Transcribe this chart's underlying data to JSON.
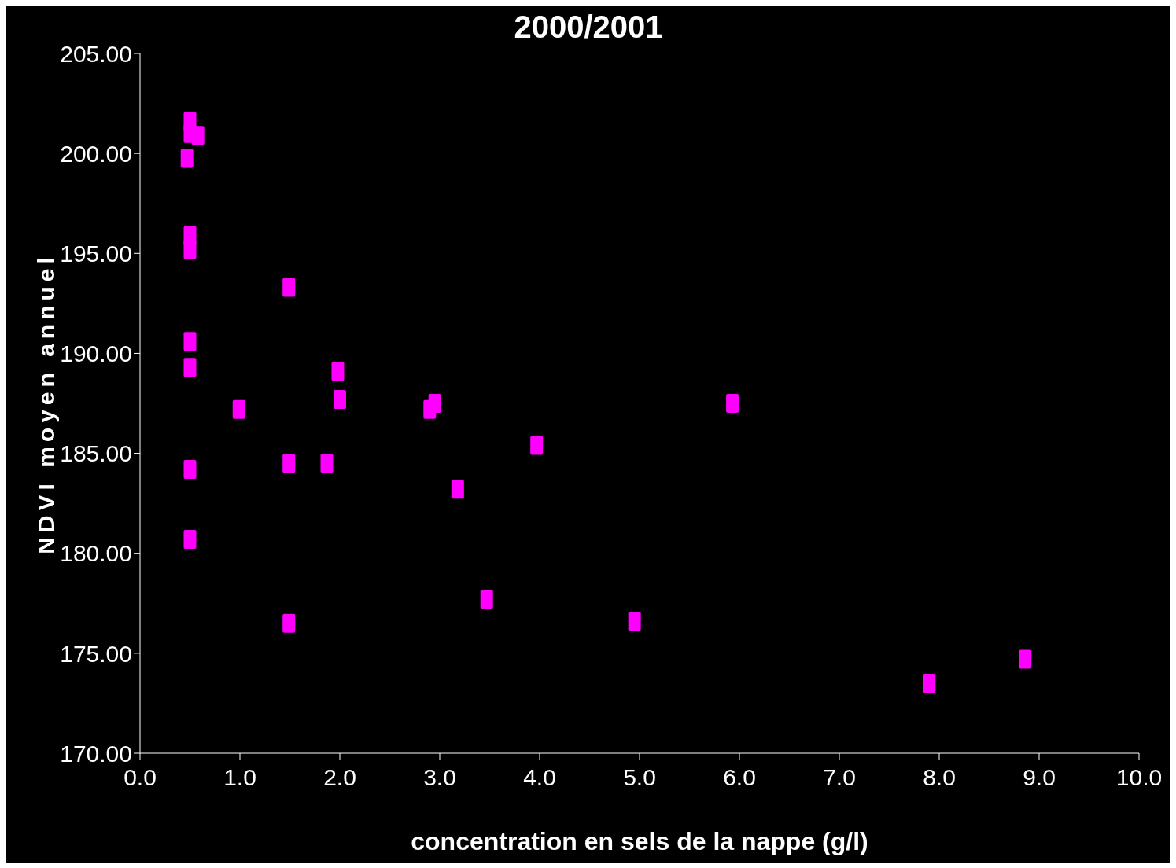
{
  "chart_data": {
    "type": "scatter",
    "title": "2000/2001",
    "xlabel": "concentration en sels de la nappe (g/l)",
    "ylabel": "NDVI moyen annuel",
    "x": [
      0.5,
      0.5,
      0.58,
      0.47,
      0.5,
      0.5,
      0.5,
      0.5,
      0.5,
      0.5,
      0.99,
      1.49,
      1.49,
      1.49,
      1.87,
      1.98,
      2.0,
      2.9,
      2.95,
      3.18,
      3.47,
      3.97,
      4.95,
      5.93,
      7.9,
      8.86
    ],
    "values": [
      201.6,
      201.0,
      200.9,
      199.75,
      195.9,
      195.2,
      190.6,
      189.3,
      184.2,
      180.7,
      187.2,
      193.3,
      184.5,
      176.5,
      184.5,
      189.1,
      187.7,
      187.2,
      187.5,
      183.2,
      177.7,
      185.4,
      176.6,
      187.5,
      173.5,
      174.7
    ],
    "color": "#ff00ff",
    "marker": "square",
    "xlim": [
      0,
      10
    ],
    "xticks": [
      {
        "value": 0,
        "label": "0.0"
      },
      {
        "value": 1,
        "label": "1.0"
      },
      {
        "value": 2,
        "label": "2.0"
      },
      {
        "value": 3,
        "label": "3.0"
      },
      {
        "value": 4,
        "label": "4.0"
      },
      {
        "value": 5,
        "label": "5.0"
      },
      {
        "value": 6,
        "label": "6.0"
      },
      {
        "value": 7,
        "label": "7.0"
      },
      {
        "value": 8,
        "label": "8.0"
      },
      {
        "value": 9,
        "label": "9.0"
      },
      {
        "value": 10,
        "label": "10.0"
      }
    ],
    "ylim": [
      170,
      205
    ],
    "yticks": [
      {
        "value": 170,
        "label": "170.00"
      },
      {
        "value": 175,
        "label": "175.00"
      },
      {
        "value": 180,
        "label": "180.00"
      },
      {
        "value": 185,
        "label": "185.00"
      },
      {
        "value": 190,
        "label": "190.00"
      },
      {
        "value": 195,
        "label": "195.00"
      },
      {
        "value": 200,
        "label": "200.00"
      },
      {
        "value": 205,
        "label": "205.00"
      }
    ]
  }
}
